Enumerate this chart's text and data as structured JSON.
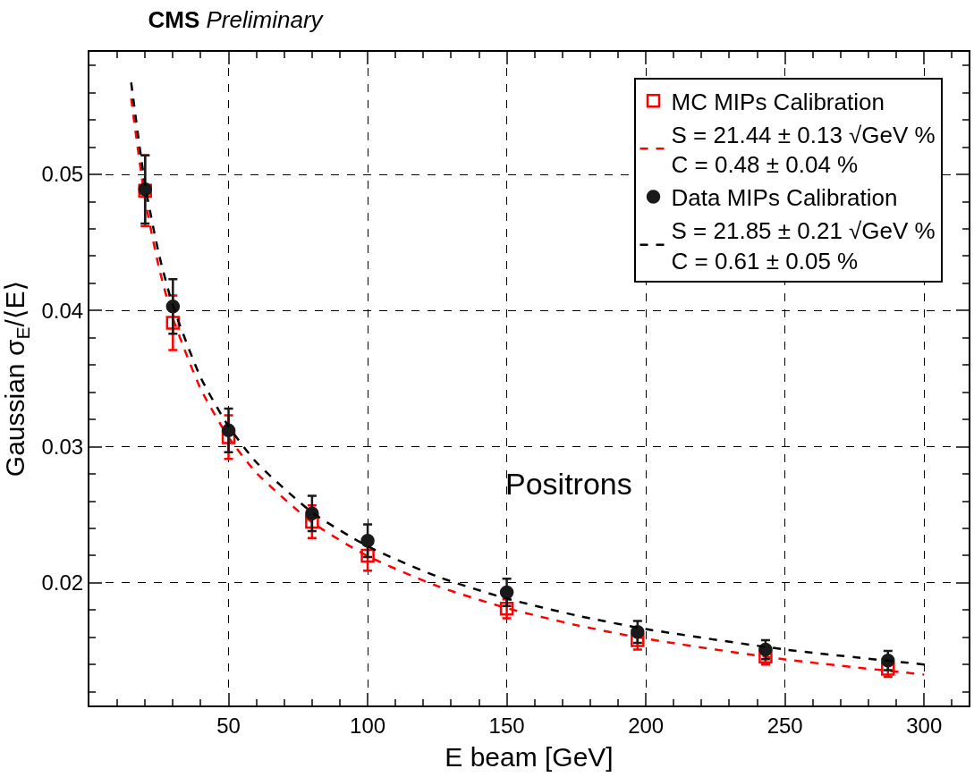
{
  "chart_data": {
    "type": "scatter",
    "title": "CMS",
    "subtitle": "Preliminary",
    "xlabel": "E beam [GeV]",
    "ylabel": "Gaussian σ$_{E}$/⟨E⟩",
    "xlim": [
      0,
      316
    ],
    "xticks": [
      50,
      100,
      150,
      200,
      250,
      300
    ],
    "ylim": [
      0.011,
      0.059
    ],
    "yticks": [
      0.02,
      0.03,
      0.04,
      0.05
    ],
    "grid": true,
    "legend": "top right",
    "annotations": [
      "Positrons"
    ],
    "series": [
      {
        "name": "MC MIPs Calibration",
        "marker": "square",
        "color": "#ff0000",
        "x": [
          20,
          30,
          50,
          80,
          100,
          150,
          197,
          243,
          287
        ],
        "values": [
          0.0488,
          0.0391,
          0.0307,
          0.0245,
          0.022,
          0.0181,
          0.0158,
          0.0146,
          0.0137
        ],
        "errors": [
          0.0026,
          0.002,
          0.0016,
          0.0012,
          0.0011,
          0.0007,
          0.0007,
          0.0006,
          0.0006
        ]
      },
      {
        "name": "S = 21.44 ± 0.13 √GeV %\nC = 0.48 ± 0.04 %",
        "type": "line",
        "line_style": "dashed",
        "color": "#ff0000",
        "x": [
          15,
          20,
          25,
          30,
          40,
          50,
          60,
          80,
          100,
          125,
          150,
          175,
          200,
          250,
          300
        ],
        "values": [
          0.05557,
          0.04818,
          0.04315,
          0.03944,
          0.03424,
          0.0307,
          0.02809,
          0.02445,
          0.02197,
          0.01977,
          0.01815,
          0.0169,
          0.0159,
          0.01438,
          0.01327
        ]
      },
      {
        "name": "Data MIPs Calibration",
        "marker": "circle",
        "color": "#1a1a1a",
        "x": [
          20,
          30,
          50,
          80,
          100,
          150,
          197,
          243,
          287
        ],
        "values": [
          0.0489,
          0.0403,
          0.0312,
          0.0251,
          0.0231,
          0.0193,
          0.0164,
          0.0151,
          0.0143
        ],
        "errors": [
          0.0025,
          0.002,
          0.0016,
          0.0013,
          0.0012,
          0.001,
          0.0008,
          0.0007,
          0.0007
        ]
      },
      {
        "name": "S = 21.85 ± 0.21 √GeV %\nC = 0.61 ± 0.05 %",
        "type": "line",
        "line_style": "dashed",
        "color": "#000000",
        "x": [
          15,
          20,
          25,
          30,
          40,
          50,
          60,
          80,
          100,
          125,
          150,
          175,
          200,
          250,
          300
        ],
        "values": [
          0.05675,
          0.04924,
          0.04412,
          0.04036,
          0.03508,
          0.0315,
          0.02886,
          0.02518,
          0.02269,
          0.02047,
          0.01885,
          0.01761,
          0.01661,
          0.01511,
          0.01401
        ]
      }
    ]
  }
}
